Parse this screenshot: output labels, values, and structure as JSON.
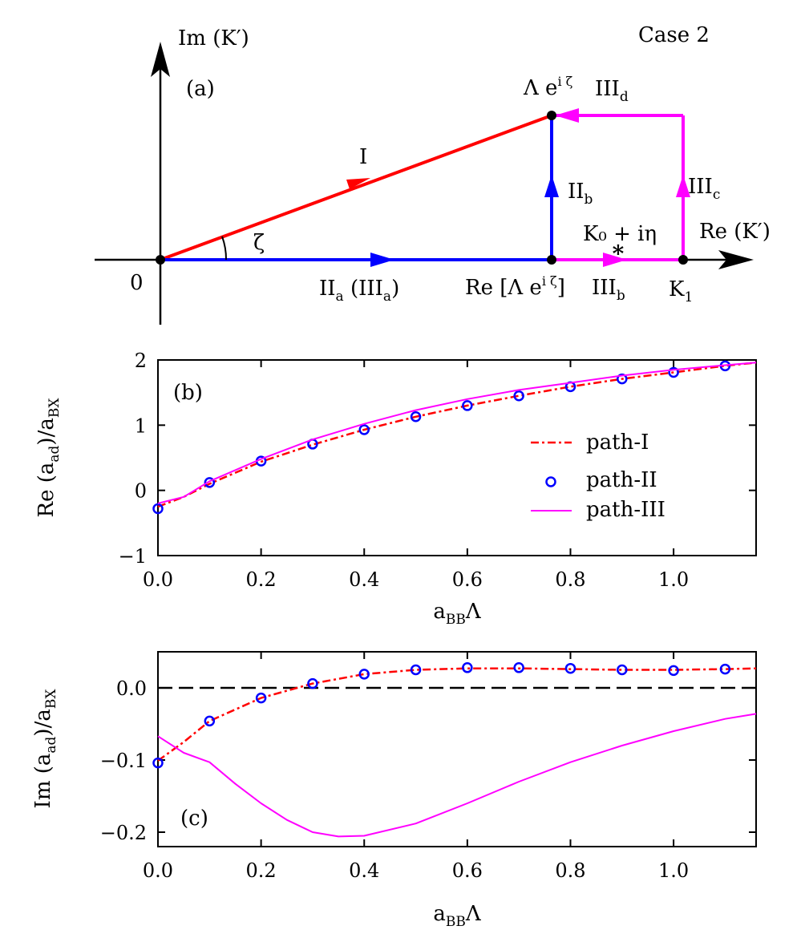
{
  "panel_a": {
    "case_label": "Case 2",
    "panel_label": "(a)",
    "imag_axis_label": "Im (K′)",
    "real_axis_label": "Re (K′)",
    "origin_label": "0",
    "angle_label": "ζ",
    "point_top_base": "Λ e",
    "point_top_sup": "i ζ",
    "point_re_base": "Re [Λ e",
    "point_re_sup": "i ζ",
    "point_re_close": "]",
    "point_k1_base": "K",
    "point_k1_sub": "1",
    "pole_label": "K₀ + iη",
    "paths": {
      "I": "I",
      "IIa_base": "II",
      "IIa_sub": "a",
      "IIa_paren_base": "(III",
      "IIa_paren_sub": "a",
      "IIa_paren_close": ")",
      "IIb_base": "II",
      "IIb_sub": "b",
      "IIIb_base": "III",
      "IIIb_sub": "b",
      "IIIc_base": "III",
      "IIIc_sub": "c",
      "IIId_base": "III",
      "IIId_sub": "d"
    },
    "colors": {
      "path_I": "#ff0000",
      "path_II": "#0000ff",
      "path_III": "#ff00ff",
      "pole": "#33dd33"
    }
  },
  "chart_data": [
    {
      "type": "line",
      "panel": "(b)",
      "ylabel_base": "Re (a",
      "ylabel_sub_ad": "ad",
      "ylabel_mid": ")/a",
      "ylabel_sub_bx": "BX",
      "xlabel_base": "a",
      "xlabel_sub": "BB",
      "xlabel_tail": "Λ",
      "xlim": [
        0.0,
        1.16
      ],
      "ylim": [
        -1,
        2
      ],
      "xticks": [
        0.0,
        0.2,
        0.4,
        0.6,
        0.8,
        1.0
      ],
      "xtick_labels": [
        "0.0",
        "0.2",
        "0.4",
        "0.6",
        "0.8",
        "1.0"
      ],
      "yticks": [
        -1,
        0,
        1,
        2
      ],
      "ytick_labels": [
        "−1",
        "0",
        "1",
        "2"
      ],
      "legend": [
        "path-I",
        "path-II",
        "path-III"
      ],
      "series": [
        {
          "name": "path-I",
          "style": "dashdot",
          "color": "#ff0000",
          "x": [
            0.0,
            0.05,
            0.1,
            0.2,
            0.3,
            0.4,
            0.5,
            0.6,
            0.7,
            0.8,
            0.9,
            1.0,
            1.1,
            1.16
          ],
          "y": [
            -0.25,
            -0.1,
            0.1,
            0.44,
            0.7,
            0.93,
            1.13,
            1.3,
            1.45,
            1.59,
            1.71,
            1.81,
            1.91,
            1.96
          ]
        },
        {
          "name": "path-II",
          "style": "markers",
          "color": "#0000ff",
          "x": [
            0.0,
            0.1,
            0.2,
            0.3,
            0.4,
            0.5,
            0.6,
            0.7,
            0.8,
            0.9,
            1.0,
            1.1
          ],
          "y": [
            -0.28,
            0.12,
            0.45,
            0.71,
            0.93,
            1.13,
            1.3,
            1.45,
            1.59,
            1.71,
            1.81,
            1.91
          ]
        },
        {
          "name": "path-III",
          "style": "solid",
          "color": "#ff00ff",
          "x": [
            0.0,
            0.05,
            0.1,
            0.2,
            0.3,
            0.4,
            0.5,
            0.6,
            0.7,
            0.8,
            0.9,
            1.0,
            1.1,
            1.16
          ],
          "y": [
            -0.2,
            -0.1,
            0.14,
            0.48,
            0.78,
            1.02,
            1.23,
            1.4,
            1.54,
            1.65,
            1.76,
            1.85,
            1.92,
            1.96
          ]
        }
      ]
    },
    {
      "type": "line",
      "panel": "(c)",
      "ylabel_base": "Im (a",
      "ylabel_sub_ad": "ad",
      "ylabel_mid": ")/a",
      "ylabel_sub_bx": "BX",
      "xlabel_base": "a",
      "xlabel_sub": "BB",
      "xlabel_tail": "Λ",
      "xlim": [
        0.0,
        1.16
      ],
      "ylim": [
        -0.22,
        0.05
      ],
      "xticks": [
        0.0,
        0.2,
        0.4,
        0.6,
        0.8,
        1.0
      ],
      "xtick_labels": [
        "0.0",
        "0.2",
        "0.4",
        "0.6",
        "0.8",
        "1.0"
      ],
      "yticks": [
        -0.2,
        -0.1,
        0.0
      ],
      "ytick_labels": [
        "−0.2",
        "−0.1",
        "0.0"
      ],
      "reference_line": {
        "y": 0.0,
        "style": "dashed",
        "color": "#000000"
      },
      "series": [
        {
          "name": "path-I",
          "style": "dashdot",
          "color": "#ff0000",
          "x": [
            0.0,
            0.05,
            0.1,
            0.2,
            0.3,
            0.4,
            0.5,
            0.6,
            0.7,
            0.8,
            0.9,
            1.0,
            1.1,
            1.16
          ],
          "y": [
            -0.101,
            -0.075,
            -0.046,
            -0.014,
            0.006,
            0.019,
            0.025,
            0.027,
            0.027,
            0.026,
            0.025,
            0.025,
            0.026,
            0.027
          ]
        },
        {
          "name": "path-II",
          "style": "markers",
          "color": "#0000ff",
          "x": [
            0.0,
            0.1,
            0.2,
            0.3,
            0.4,
            0.5,
            0.6,
            0.7,
            0.8,
            0.9,
            1.0,
            1.1
          ],
          "y": [
            -0.104,
            -0.046,
            -0.014,
            0.006,
            0.019,
            0.025,
            0.028,
            0.028,
            0.027,
            0.025,
            0.024,
            0.026
          ]
        },
        {
          "name": "path-III",
          "style": "solid",
          "color": "#ff00ff",
          "x": [
            0.0,
            0.05,
            0.1,
            0.15,
            0.2,
            0.25,
            0.3,
            0.35,
            0.4,
            0.5,
            0.6,
            0.7,
            0.8,
            0.9,
            1.0,
            1.1,
            1.16
          ],
          "y": [
            -0.067,
            -0.09,
            -0.103,
            -0.133,
            -0.16,
            -0.183,
            -0.2,
            -0.206,
            -0.205,
            -0.188,
            -0.16,
            -0.13,
            -0.103,
            -0.08,
            -0.06,
            -0.043,
            -0.036
          ]
        }
      ]
    }
  ]
}
